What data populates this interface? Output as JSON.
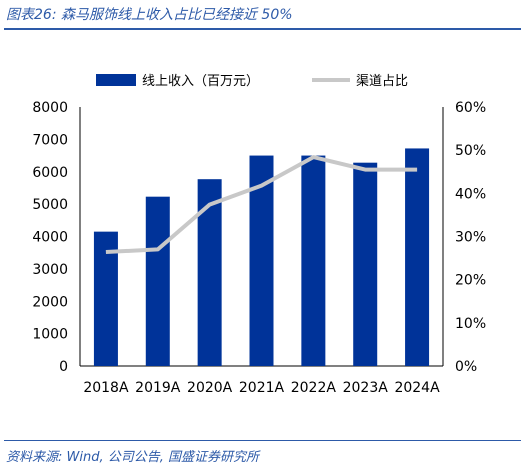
{
  "header": {
    "title": "图表26: 森马服饰线上收入占比已经接近 50%"
  },
  "footer": {
    "source": "资料来源: Wind, 公司公告, 国盛证券研究所"
  },
  "chart_data": {
    "type": "bar",
    "categories": [
      "2018A",
      "2019A",
      "2020A",
      "2021A",
      "2022A",
      "2023A",
      "2024A"
    ],
    "series": [
      {
        "name": "线上收入（百万元）",
        "type": "bar",
        "axis": "left",
        "color": "#003399",
        "values": [
          4150,
          5230,
          5770,
          6500,
          6500,
          6280,
          6720
        ]
      },
      {
        "name": "渠道占比",
        "type": "line",
        "axis": "right",
        "color": "#c8c8c8",
        "values": [
          26.4,
          27.0,
          37.4,
          41.8,
          48.4,
          45.5,
          45.5
        ]
      }
    ],
    "ylim_left": [
      0,
      8000
    ],
    "yticks_left": [
      "0",
      "1000",
      "2000",
      "3000",
      "4000",
      "5000",
      "6000",
      "7000",
      "8000"
    ],
    "ylim_right": [
      0,
      60
    ],
    "yticks_right": [
      "0%",
      "10%",
      "20%",
      "30%",
      "40%",
      "50%",
      "60%"
    ],
    "grid": false,
    "legend_position": "top"
  }
}
